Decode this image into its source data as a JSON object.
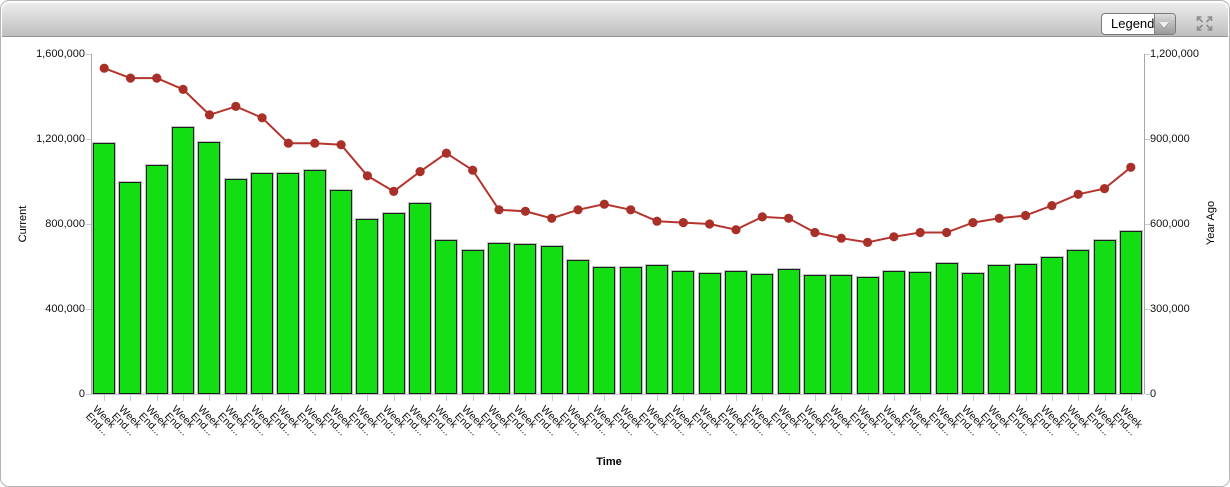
{
  "toolbar": {
    "legend_label": "Legend"
  },
  "chart_data": {
    "type": "bar",
    "subtype": "combo-bar-line-dual-axis",
    "title": "",
    "xlabel": "Time",
    "ylabel_left": "Current",
    "ylabel_right": "Year Ago",
    "grid": false,
    "left_axis": {
      "max": 1600000,
      "ticks_top_to_bottom": [
        "1,600,000",
        "1,200,000",
        "800,000",
        "400,000",
        "0"
      ]
    },
    "right_axis": {
      "max": 1200000,
      "ticks_top_to_bottom": [
        "1,200,000",
        "900,000",
        "600,000",
        "300,000",
        "0"
      ]
    },
    "categories": [
      "Week End...",
      "Week End...",
      "Week End...",
      "Week End...",
      "Week End...",
      "Week End...",
      "Week End...",
      "Week End...",
      "Week End...",
      "Week End...",
      "Week End...",
      "Week End...",
      "Week End...",
      "Week End...",
      "Week End...",
      "Week End...",
      "Week End...",
      "Week End...",
      "Week End...",
      "Week End...",
      "Week End...",
      "Week End...",
      "Week End...",
      "Week End...",
      "Week End...",
      "Week End...",
      "Week End...",
      "Week End...",
      "Week End...",
      "Week End...",
      "Week End...",
      "Week End...",
      "Week End...",
      "Week End...",
      "Week End...",
      "Week End...",
      "Week End...",
      "Week End...",
      "Week End...",
      "Week End..."
    ],
    "series": [
      {
        "name": "Current",
        "type": "bar",
        "axis": "left",
        "color": "#13dd13",
        "values": [
          1180000,
          1000000,
          1080000,
          1255000,
          1185000,
          1010000,
          1040000,
          1040000,
          1055000,
          960000,
          825000,
          850000,
          900000,
          725000,
          680000,
          710000,
          705000,
          695000,
          630000,
          600000,
          600000,
          605000,
          580000,
          570000,
          580000,
          565000,
          590000,
          560000,
          560000,
          550000,
          580000,
          575000,
          615000,
          570000,
          605000,
          610000,
          645000,
          680000,
          725000,
          765000
        ]
      },
      {
        "name": "Year Ago",
        "type": "line",
        "axis": "right",
        "color": "#b5342e",
        "marker_color": "#a93028",
        "values": [
          1150000,
          1115000,
          1115000,
          1075000,
          985000,
          1015000,
          975000,
          885000,
          885000,
          880000,
          770000,
          715000,
          785000,
          850000,
          790000,
          650000,
          645000,
          620000,
          650000,
          670000,
          650000,
          610000,
          605000,
          600000,
          580000,
          625000,
          620000,
          570000,
          550000,
          535000,
          555000,
          570000,
          570000,
          605000,
          620000,
          630000,
          665000,
          705000,
          725000,
          800000
        ]
      }
    ]
  }
}
